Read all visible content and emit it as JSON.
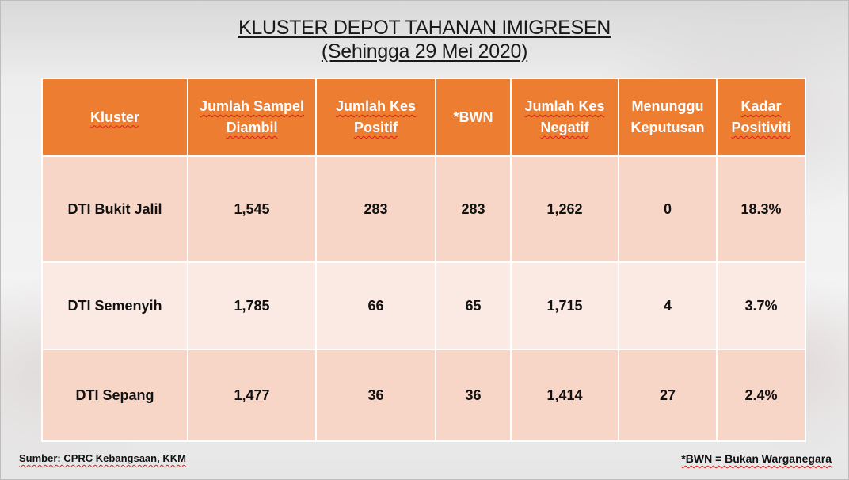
{
  "title": {
    "line1": "KLUSTER DEPOT TAHANAN IMIGRESEN",
    "line2": "(Sehingga 29 Mei 2020)"
  },
  "table": {
    "headers": [
      "Kluster",
      "Jumlah Sampel Diambil",
      "Jumlah Kes Positif",
      "*BWN",
      "Jumlah Kes Negatif",
      "Menunggu Keputusan",
      "Kadar Positiviti"
    ],
    "rows": [
      [
        "DTI Bukit Jalil",
        "1,545",
        "283",
        "283",
        "1,262",
        "0",
        "18.3%"
      ],
      [
        "DTI Semenyih",
        "1,785",
        "66",
        "65",
        "1,715",
        "4",
        "3.7%"
      ],
      [
        "DTI Sepang",
        "1,477",
        "36",
        "36",
        "1,414",
        "27",
        "2.4%"
      ]
    ]
  },
  "footer": {
    "source": "Sumber: CPRC Kebangsaan, KKM",
    "bwn_note": "*BWN = Bukan Warganegara"
  },
  "colors": {
    "header_bg": "#ed7d31",
    "row_dark": "#f8d6c7",
    "row_light": "#fbe9e3"
  }
}
